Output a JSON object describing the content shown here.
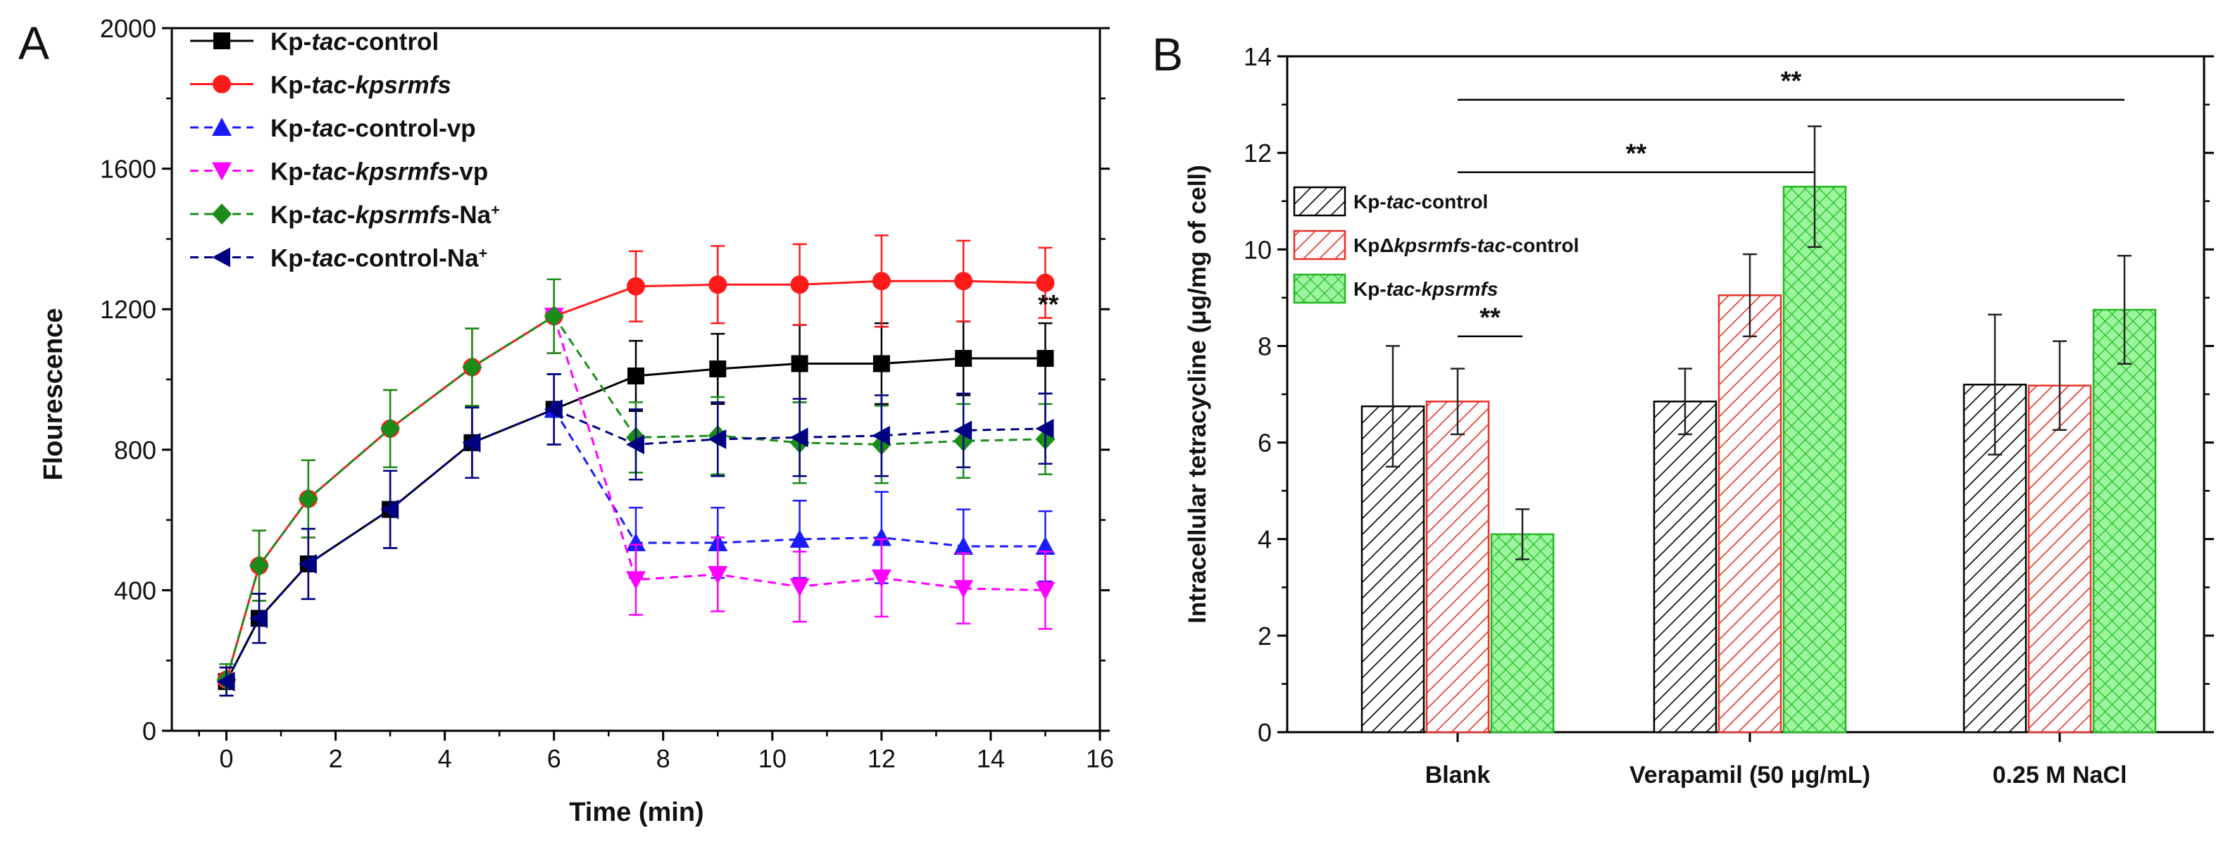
{
  "chart_data": [
    {
      "panel_label": "A",
      "type": "line",
      "xlabel": "Time (min)",
      "ylabel": "Flourescence",
      "xlim": [
        -1,
        16
      ],
      "ylim": [
        0,
        2000
      ],
      "xticks": [
        0,
        2,
        4,
        6,
        8,
        10,
        12,
        14,
        16
      ],
      "yticks": [
        0,
        400,
        800,
        1200,
        1600,
        2000
      ],
      "annotation": "**",
      "legend_position": "top-left",
      "series": [
        {
          "name": "Kp-tac-control",
          "legend_parts": [
            {
              "t": "Kp-"
            },
            {
              "t": "tac",
              "i": true
            },
            {
              "t": "-control"
            }
          ],
          "color": "#000000",
          "marker": "square",
          "dashed": false,
          "x": [
            0,
            0.6,
            1.5,
            3,
            4.5,
            6,
            7.5,
            9,
            10.5,
            12,
            13.5,
            15
          ],
          "y": [
            140,
            320,
            475,
            630,
            820,
            915,
            1010,
            1030,
            1045,
            1045,
            1060,
            1060
          ],
          "err": [
            40,
            70,
            100,
            110,
            100,
            100,
            100,
            100,
            110,
            115,
            105,
            100
          ]
        },
        {
          "name": "Kp-tac-kpsrmfs",
          "legend_parts": [
            {
              "t": "Kp-"
            },
            {
              "t": "tac",
              "i": true
            },
            {
              "t": "-"
            },
            {
              "t": "kpsrmfs",
              "i": true
            }
          ],
          "color": "#ff1a1a",
          "marker": "circle",
          "dashed": false,
          "x": [
            0,
            0.6,
            1.5,
            3,
            4.5,
            6,
            7.5,
            9,
            10.5,
            12,
            13.5,
            15
          ],
          "y": [
            145,
            470,
            660,
            860,
            1035,
            1180,
            1265,
            1270,
            1270,
            1280,
            1280,
            1275
          ],
          "err": [
            45,
            100,
            110,
            110,
            110,
            105,
            100,
            110,
            115,
            130,
            115,
            100
          ]
        },
        {
          "name": "Kp-tac-control-vp",
          "legend_parts": [
            {
              "t": "Kp-"
            },
            {
              "t": "tac",
              "i": true
            },
            {
              "t": "-control-vp"
            }
          ],
          "color": "#1a1aff",
          "marker": "triangle-up",
          "dashed": true,
          "x": [
            6,
            7.5,
            9,
            10.5,
            12,
            13.5,
            15
          ],
          "y": [
            915,
            535,
            535,
            545,
            550,
            525,
            525
          ],
          "err": [
            100,
            100,
            100,
            110,
            130,
            105,
            100
          ]
        },
        {
          "name": "Kp-tac-kpsrmfs-vp",
          "legend_parts": [
            {
              "t": "Kp-"
            },
            {
              "t": "tac",
              "i": true
            },
            {
              "t": "-"
            },
            {
              "t": "kpsrmfs",
              "i": true
            },
            {
              "t": "-vp"
            }
          ],
          "color": "#ff00ff",
          "marker": "triangle-down",
          "dashed": true,
          "x": [
            6,
            7.5,
            9,
            10.5,
            12,
            13.5,
            15
          ],
          "y": [
            1180,
            430,
            445,
            410,
            435,
            405,
            400
          ],
          "err": [
            105,
            100,
            105,
            100,
            110,
            100,
            110
          ]
        },
        {
          "name": "Kp-tac-kpsrmfs-Na+",
          "legend_parts": [
            {
              "t": "Kp-"
            },
            {
              "t": "tac",
              "i": true
            },
            {
              "t": "-"
            },
            {
              "t": "kpsrmfs",
              "i": true
            },
            {
              "t": "-Na"
            },
            {
              "t": "+",
              "sup": true
            }
          ],
          "color": "#1a8c1a",
          "marker": "diamond",
          "dashed": true,
          "x": [
            0,
            0.6,
            1.5,
            3,
            4.5,
            6,
            7.5,
            9,
            10.5,
            12,
            13.5,
            15
          ],
          "y": [
            145,
            470,
            660,
            860,
            1035,
            1180,
            835,
            840,
            820,
            815,
            825,
            830
          ],
          "err": [
            45,
            100,
            110,
            110,
            110,
            105,
            100,
            110,
            115,
            110,
            105,
            100
          ]
        },
        {
          "name": "Kp-tac-control-Na+",
          "legend_parts": [
            {
              "t": "Kp-"
            },
            {
              "t": "tac",
              "i": true
            },
            {
              "t": "-control-Na"
            },
            {
              "t": "+",
              "sup": true
            }
          ],
          "color": "#000080",
          "marker": "triangle-left",
          "dashed": true,
          "x": [
            0,
            0.6,
            1.5,
            3,
            4.5,
            6,
            7.5,
            9,
            10.5,
            12,
            13.5,
            15
          ],
          "y": [
            140,
            320,
            475,
            630,
            820,
            915,
            815,
            830,
            835,
            840,
            855,
            860
          ],
          "err": [
            40,
            70,
            100,
            110,
            100,
            100,
            100,
            105,
            110,
            115,
            105,
            100
          ]
        }
      ]
    },
    {
      "panel_label": "B",
      "type": "bar",
      "xlabel": "",
      "ylabel": "Intracellular tetracycline (μg/mg of cell)",
      "ylim": [
        0,
        14
      ],
      "yticks": [
        0,
        2,
        4,
        6,
        8,
        10,
        12,
        14
      ],
      "categories": [
        "Blank",
        "Verapamil (50 μg/mL)",
        "0.25 M NaCl"
      ],
      "legend_position": "top-left",
      "series": [
        {
          "name": "Kp-tac-control",
          "legend_parts": [
            {
              "t": "Kp-"
            },
            {
              "t": "tac",
              "i": true
            },
            {
              "t": "-control"
            }
          ],
          "color": "#000000",
          "pattern": "diagonal",
          "values": [
            6.75,
            6.85,
            7.2
          ],
          "err": [
            1.25,
            0.68,
            1.45
          ]
        },
        {
          "name": "KpΔkpsrmfs-tac-control",
          "legend_parts": [
            {
              "t": "KpΔ"
            },
            {
              "t": "kpsrmfs",
              "i": true
            },
            {
              "t": "-"
            },
            {
              "t": "tac",
              "i": true
            },
            {
              "t": "-control"
            }
          ],
          "color": "#e8302a",
          "pattern": "diagonal",
          "values": [
            6.85,
            9.05,
            7.18
          ],
          "err": [
            0.68,
            0.85,
            0.92
          ]
        },
        {
          "name": "Kp-tac-kpsrmfs",
          "legend_parts": [
            {
              "t": "Kp-"
            },
            {
              "t": "tac",
              "i": true
            },
            {
              "t": "-"
            },
            {
              "t": "kpsrmfs",
              "i": true
            }
          ],
          "color": "#22b822",
          "fill": "#9cf59c",
          "pattern": "crosshatch",
          "values": [
            4.1,
            11.3,
            8.75
          ],
          "err": [
            0.52,
            1.25,
            1.12
          ]
        }
      ],
      "significance": [
        {
          "label": "**",
          "from": [
            0,
            1
          ],
          "to": [
            0,
            2
          ],
          "y": 8.2
        },
        {
          "label": "**",
          "from": [
            0,
            1
          ],
          "to": [
            1,
            2
          ],
          "y": 11.6
        },
        {
          "label": "**",
          "from": [
            0,
            1
          ],
          "to": [
            2,
            2
          ],
          "y": 13.1
        }
      ]
    }
  ]
}
